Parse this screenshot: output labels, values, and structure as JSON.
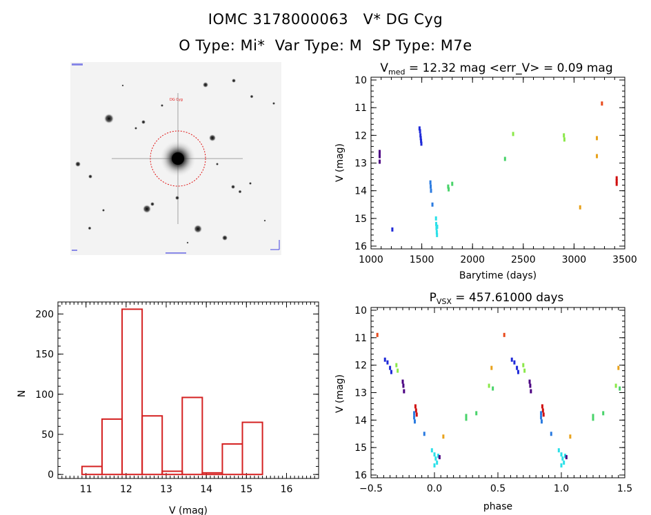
{
  "header": {
    "title_line1": "IOMC 3178000063   V* DG Cyg",
    "title_line2": "O Type: Mi*  Var Type: M  SP Type: M7e"
  },
  "colors": {
    "histogram_bar": "#d42020",
    "circle": "#e01010",
    "series": {
      "c1": "#4b0082",
      "c2": "#1f2ad8",
      "c3": "#2b7be0",
      "c4": "#2be0e8",
      "c5": "#49d36a",
      "c6": "#8be84a",
      "c7": "#e8a21c",
      "c8": "#e84a1c",
      "c9": "#d01010"
    }
  },
  "image_panel": {
    "marker_label": "DG Cyg",
    "circle": "target aperture"
  },
  "chart_data": [
    {
      "type": "scatter",
      "name": "light-curve",
      "title_main": "V",
      "title_sub": "med",
      "title_rest": " = 12.32 mag <err_V> = 0.09 mag",
      "xlabel": "Barytime (days)",
      "ylabel": "V (mag)",
      "xlim": [
        1000,
        3500
      ],
      "ylim": [
        16.1,
        9.9
      ],
      "xticks": [
        1000,
        1500,
        2000,
        2500,
        3000,
        3500
      ],
      "yticks": [
        10,
        11,
        12,
        13,
        14,
        15,
        16
      ],
      "points": [
        {
          "x": 1085,
          "y": 12.6,
          "c": "c1"
        },
        {
          "x": 1085,
          "y": 12.75,
          "c": "c1"
        },
        {
          "x": 1085,
          "y": 12.95,
          "c": "c1"
        },
        {
          "x": 1210,
          "y": 15.4,
          "c": "c2"
        },
        {
          "x": 1478,
          "y": 11.75,
          "c": "c2"
        },
        {
          "x": 1483,
          "y": 11.85,
          "c": "c2"
        },
        {
          "x": 1487,
          "y": 12.0,
          "c": "c2"
        },
        {
          "x": 1490,
          "y": 12.1,
          "c": "c2"
        },
        {
          "x": 1493,
          "y": 12.2,
          "c": "c2"
        },
        {
          "x": 1496,
          "y": 12.3,
          "c": "c2"
        },
        {
          "x": 1585,
          "y": 13.7,
          "c": "c3"
        },
        {
          "x": 1588,
          "y": 13.85,
          "c": "c3"
        },
        {
          "x": 1591,
          "y": 14.0,
          "c": "c3"
        },
        {
          "x": 1605,
          "y": 14.5,
          "c": "c3"
        },
        {
          "x": 1640,
          "y": 15.0,
          "c": "c4"
        },
        {
          "x": 1642,
          "y": 15.2,
          "c": "c4"
        },
        {
          "x": 1645,
          "y": 15.35,
          "c": "c4"
        },
        {
          "x": 1648,
          "y": 15.5,
          "c": "c4"
        },
        {
          "x": 1650,
          "y": 15.6,
          "c": "c4"
        },
        {
          "x": 1652,
          "y": 15.3,
          "c": "c4"
        },
        {
          "x": 1760,
          "y": 13.85,
          "c": "c5"
        },
        {
          "x": 1765,
          "y": 13.95,
          "c": "c5"
        },
        {
          "x": 1800,
          "y": 13.75,
          "c": "c5"
        },
        {
          "x": 2320,
          "y": 12.85,
          "c": "c5"
        },
        {
          "x": 2400,
          "y": 11.95,
          "c": "c6"
        },
        {
          "x": 2900,
          "y": 12.0,
          "c": "c6"
        },
        {
          "x": 2905,
          "y": 12.15,
          "c": "c6"
        },
        {
          "x": 3060,
          "y": 14.6,
          "c": "c7"
        },
        {
          "x": 3225,
          "y": 12.1,
          "c": "c7"
        },
        {
          "x": 3225,
          "y": 12.75,
          "c": "c7"
        },
        {
          "x": 3275,
          "y": 10.85,
          "c": "c8"
        },
        {
          "x": 3420,
          "y": 13.55,
          "c": "c9"
        },
        {
          "x": 3420,
          "y": 13.65,
          "c": "c9"
        },
        {
          "x": 3420,
          "y": 13.75,
          "c": "c9"
        }
      ]
    },
    {
      "type": "bar",
      "name": "histogram",
      "xlabel": "V (mag)",
      "ylabel": "N",
      "xlim": [
        10.3,
        16.8
      ],
      "ylim": [
        -5,
        215
      ],
      "xticks": [
        11,
        12,
        13,
        14,
        15,
        16
      ],
      "yticks": [
        0,
        50,
        100,
        150,
        200
      ],
      "bins": [
        {
          "from": 10.9,
          "to": 11.4,
          "value": 10
        },
        {
          "from": 11.4,
          "to": 11.9,
          "value": 69
        },
        {
          "from": 11.9,
          "to": 12.4,
          "value": 206
        },
        {
          "from": 12.4,
          "to": 12.9,
          "value": 73
        },
        {
          "from": 12.9,
          "to": 13.4,
          "value": 4
        },
        {
          "from": 13.4,
          "to": 13.9,
          "value": 96
        },
        {
          "from": 13.9,
          "to": 14.4,
          "value": 2
        },
        {
          "from": 14.4,
          "to": 14.9,
          "value": 38
        },
        {
          "from": 14.9,
          "to": 15.4,
          "value": 65
        }
      ]
    },
    {
      "type": "scatter",
      "name": "phased-curve",
      "title_main": "P",
      "title_sub": "VSX",
      "title_rest": " = 457.61000 days",
      "xlabel": "phase",
      "ylabel": "V (mag)",
      "xlim": [
        -0.5,
        1.5
      ],
      "ylim": [
        16.1,
        9.9
      ],
      "xticks": [
        -0.5,
        0.0,
        0.5,
        1.0,
        1.5
      ],
      "xtick_labels": [
        "−0.5",
        "0.0",
        "0.5",
        "1.0",
        "1.5"
      ],
      "yticks": [
        10,
        11,
        12,
        13,
        14,
        15,
        16
      ],
      "points": [
        {
          "x": -0.45,
          "y": 10.9,
          "c": "c8"
        },
        {
          "x": -0.39,
          "y": 11.8,
          "c": "c2"
        },
        {
          "x": -0.37,
          "y": 11.9,
          "c": "c2"
        },
        {
          "x": -0.35,
          "y": 12.1,
          "c": "c2"
        },
        {
          "x": -0.34,
          "y": 12.25,
          "c": "c2"
        },
        {
          "x": -0.3,
          "y": 12.0,
          "c": "c6"
        },
        {
          "x": -0.29,
          "y": 12.2,
          "c": "c6"
        },
        {
          "x": -0.25,
          "y": 12.6,
          "c": "c1"
        },
        {
          "x": -0.245,
          "y": 12.75,
          "c": "c1"
        },
        {
          "x": -0.24,
          "y": 12.95,
          "c": "c1"
        },
        {
          "x": -0.15,
          "y": 13.5,
          "c": "c9"
        },
        {
          "x": -0.145,
          "y": 13.65,
          "c": "c9"
        },
        {
          "x": -0.14,
          "y": 13.8,
          "c": "c9"
        },
        {
          "x": -0.16,
          "y": 13.75,
          "c": "c3"
        },
        {
          "x": -0.16,
          "y": 13.9,
          "c": "c3"
        },
        {
          "x": -0.155,
          "y": 14.05,
          "c": "c3"
        },
        {
          "x": -0.08,
          "y": 14.5,
          "c": "c3"
        },
        {
          "x": -0.02,
          "y": 15.1,
          "c": "c4"
        },
        {
          "x": 0.0,
          "y": 15.25,
          "c": "c4"
        },
        {
          "x": 0.01,
          "y": 15.4,
          "c": "c4"
        },
        {
          "x": 0.02,
          "y": 15.55,
          "c": "c4"
        },
        {
          "x": 0.0,
          "y": 15.65,
          "c": "c4"
        },
        {
          "x": 0.03,
          "y": 15.3,
          "c": "c4"
        },
        {
          "x": 0.04,
          "y": 15.35,
          "c": "c1"
        },
        {
          "x": 0.07,
          "y": 14.6,
          "c": "c7"
        },
        {
          "x": 0.25,
          "y": 13.85,
          "c": "c5"
        },
        {
          "x": 0.25,
          "y": 13.95,
          "c": "c5"
        },
        {
          "x": 0.33,
          "y": 13.75,
          "c": "c5"
        },
        {
          "x": 0.43,
          "y": 12.75,
          "c": "c6"
        },
        {
          "x": 0.45,
          "y": 12.1,
          "c": "c7"
        },
        {
          "x": 0.46,
          "y": 12.85,
          "c": "c5"
        },
        {
          "x": 0.55,
          "y": 10.9,
          "c": "c8"
        },
        {
          "x": 0.61,
          "y": 11.8,
          "c": "c2"
        },
        {
          "x": 0.63,
          "y": 11.9,
          "c": "c2"
        },
        {
          "x": 0.65,
          "y": 12.1,
          "c": "c2"
        },
        {
          "x": 0.66,
          "y": 12.25,
          "c": "c2"
        },
        {
          "x": 0.7,
          "y": 12.0,
          "c": "c6"
        },
        {
          "x": 0.71,
          "y": 12.2,
          "c": "c6"
        },
        {
          "x": 0.75,
          "y": 12.6,
          "c": "c1"
        },
        {
          "x": 0.755,
          "y": 12.75,
          "c": "c1"
        },
        {
          "x": 0.76,
          "y": 12.95,
          "c": "c1"
        },
        {
          "x": 0.85,
          "y": 13.5,
          "c": "c9"
        },
        {
          "x": 0.855,
          "y": 13.65,
          "c": "c9"
        },
        {
          "x": 0.86,
          "y": 13.8,
          "c": "c9"
        },
        {
          "x": 0.84,
          "y": 13.75,
          "c": "c3"
        },
        {
          "x": 0.84,
          "y": 13.9,
          "c": "c3"
        },
        {
          "x": 0.845,
          "y": 14.05,
          "c": "c3"
        },
        {
          "x": 0.92,
          "y": 14.5,
          "c": "c3"
        },
        {
          "x": 0.98,
          "y": 15.1,
          "c": "c4"
        },
        {
          "x": 1.0,
          "y": 15.25,
          "c": "c4"
        },
        {
          "x": 1.01,
          "y": 15.4,
          "c": "c4"
        },
        {
          "x": 1.02,
          "y": 15.55,
          "c": "c4"
        },
        {
          "x": 1.0,
          "y": 15.65,
          "c": "c4"
        },
        {
          "x": 1.03,
          "y": 15.3,
          "c": "c4"
        },
        {
          "x": 1.04,
          "y": 15.35,
          "c": "c1"
        },
        {
          "x": 1.07,
          "y": 14.6,
          "c": "c7"
        },
        {
          "x": 1.25,
          "y": 13.85,
          "c": "c5"
        },
        {
          "x": 1.25,
          "y": 13.95,
          "c": "c5"
        },
        {
          "x": 1.33,
          "y": 13.75,
          "c": "c5"
        },
        {
          "x": 1.43,
          "y": 12.75,
          "c": "c6"
        },
        {
          "x": 1.45,
          "y": 12.1,
          "c": "c7"
        },
        {
          "x": 1.46,
          "y": 12.85,
          "c": "c5"
        }
      ]
    }
  ]
}
